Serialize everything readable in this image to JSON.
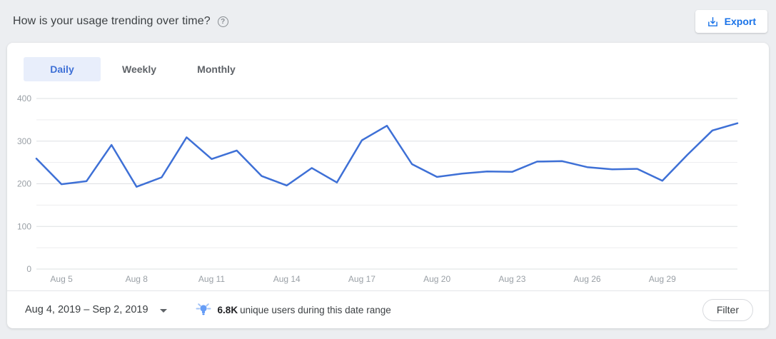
{
  "header": {
    "title": "How is your usage trending over time?",
    "help_icon": "circled-question-mark",
    "export_label": "Export"
  },
  "tabs": [
    {
      "label": "Daily",
      "active": true
    },
    {
      "label": "Weekly",
      "active": false
    },
    {
      "label": "Monthly",
      "active": false
    }
  ],
  "chart_data": {
    "type": "line",
    "title": "",
    "x": [
      "Aug 4",
      "Aug 5",
      "Aug 6",
      "Aug 7",
      "Aug 8",
      "Aug 9",
      "Aug 10",
      "Aug 11",
      "Aug 12",
      "Aug 13",
      "Aug 14",
      "Aug 15",
      "Aug 16",
      "Aug 17",
      "Aug 18",
      "Aug 19",
      "Aug 20",
      "Aug 21",
      "Aug 22",
      "Aug 23",
      "Aug 24",
      "Aug 25",
      "Aug 26",
      "Aug 27",
      "Aug 28",
      "Aug 29",
      "Aug 30",
      "Aug 31",
      "Sep 1"
    ],
    "values": [
      259,
      199,
      206,
      291,
      193,
      215,
      309,
      258,
      278,
      218,
      196,
      237,
      203,
      302,
      336,
      246,
      216,
      224,
      229,
      228,
      252,
      253,
      239,
      234,
      235,
      207,
      268,
      325,
      342
    ],
    "ylim": [
      0,
      400
    ],
    "y_tick_labels": [
      0,
      100,
      200,
      300,
      400
    ],
    "grid_step": 50,
    "x_tick_labels": [
      "Aug 5",
      "Aug 8",
      "Aug 11",
      "Aug 14",
      "Aug 17",
      "Aug 20",
      "Aug 23",
      "Aug 26",
      "Aug 29"
    ],
    "grid_on": true,
    "legend_position": "none",
    "line_color": "#3e70d6",
    "major_grid_color": "#dde0e3",
    "minor_grid_color": "#ededef",
    "axis_label_color": "#9aa0a6"
  },
  "footer": {
    "date_range": "Aug 4, 2019 – Sep 2, 2019",
    "insight_icon": "lightbulb-icon",
    "insight_value": "6.8K",
    "insight_text": "unique users during this date range",
    "filter_label": "Filter"
  },
  "colors": {
    "accent_blue": "#1a73e8",
    "active_tab_bg": "#e8eefb",
    "active_tab_text": "#3e70d6",
    "page_background": "#eceef1"
  }
}
